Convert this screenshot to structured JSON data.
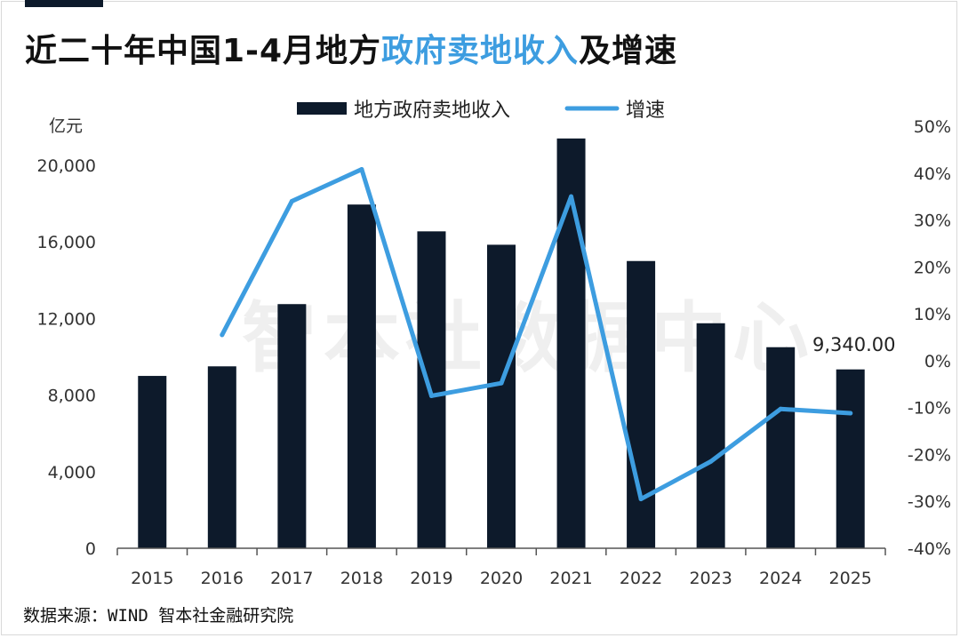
{
  "title": {
    "part1": "近二十年中国1-4月地方",
    "part2": "政府卖地收入",
    "part3": "及增速"
  },
  "source": "数据来源：WIND 智本社金融研究院",
  "watermark": "智本社数据中心",
  "colors": {
    "bar": "#0d1a2b",
    "line": "#3d9de0",
    "title_highlight": "#3d9de0"
  },
  "chart_data": {
    "type": "bar",
    "categories": [
      "2015",
      "2016",
      "2017",
      "2018",
      "2019",
      "2020",
      "2021",
      "2022",
      "2023",
      "2024",
      "2025"
    ],
    "series": [
      {
        "name": "地方政府卖地收入",
        "type": "bar",
        "axis": "left",
        "values": [
          9000,
          9500,
          12750,
          17950,
          16550,
          15850,
          21400,
          15000,
          11750,
          10500,
          9340
        ]
      },
      {
        "name": "增速",
        "type": "line",
        "axis": "right",
        "values": [
          null,
          5.5,
          34,
          40.8,
          -7.5,
          -4.8,
          35,
          -29.5,
          -21.5,
          -10.3,
          -11.2
        ]
      }
    ],
    "y_left": {
      "unit_label": "亿元",
      "range": [
        0,
        20000
      ],
      "ticks": [
        0,
        4000,
        8000,
        12000,
        16000,
        20000
      ],
      "tick_labels": [
        "0",
        "4,000",
        "8,000",
        "12,000",
        "16,000",
        "20,000"
      ]
    },
    "y_right": {
      "range": [
        -40,
        50
      ],
      "ticks": [
        -40,
        -30,
        -20,
        -10,
        0,
        10,
        20,
        30,
        40,
        50
      ],
      "tick_labels": [
        "-40%",
        "-30%",
        "-20%",
        "-10%",
        "0%",
        "10%",
        "20%",
        "30%",
        "40%",
        "50%"
      ]
    },
    "annotations": [
      {
        "category": "2025",
        "text": "9,340.00"
      }
    ],
    "legend_position": "top-center",
    "grid": false
  }
}
